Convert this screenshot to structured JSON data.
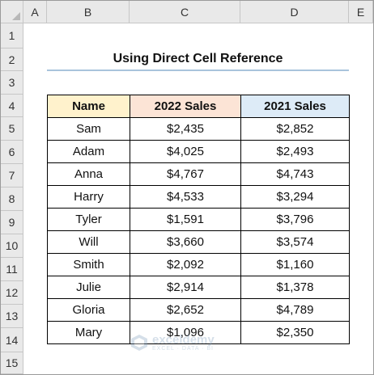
{
  "columns": [
    "A",
    "B",
    "C",
    "D",
    "E"
  ],
  "rows": [
    "1",
    "2",
    "3",
    "4",
    "5",
    "6",
    "7",
    "8",
    "9",
    "10",
    "11",
    "12",
    "13",
    "14",
    "15"
  ],
  "title": "Using Direct Cell Reference",
  "table": {
    "headers": [
      "Name",
      "2022 Sales",
      "2021 Sales"
    ],
    "header_colors": [
      "#fff2cc",
      "#fce4d6",
      "#ddebf7"
    ],
    "rows": [
      [
        "Sam",
        "$2,435",
        "$2,852"
      ],
      [
        "Adam",
        "$4,025",
        "$2,493"
      ],
      [
        "Anna",
        "$4,767",
        "$4,743"
      ],
      [
        "Harry",
        "$4,533",
        "$3,294"
      ],
      [
        "Tyler",
        "$1,591",
        "$3,796"
      ],
      [
        "Will",
        "$3,660",
        "$3,574"
      ],
      [
        "Smith",
        "$2,092",
        "$1,160"
      ],
      [
        "Julie",
        "$2,914",
        "$1,378"
      ],
      [
        "Gloria",
        "$2,652",
        "$4,789"
      ],
      [
        "Mary",
        "$1,096",
        "$2,350"
      ]
    ]
  },
  "watermark": {
    "name": "exceldemy",
    "tagline": "EXCEL · DATA · BI",
    "icon": "exceldemy-logo-icon"
  }
}
